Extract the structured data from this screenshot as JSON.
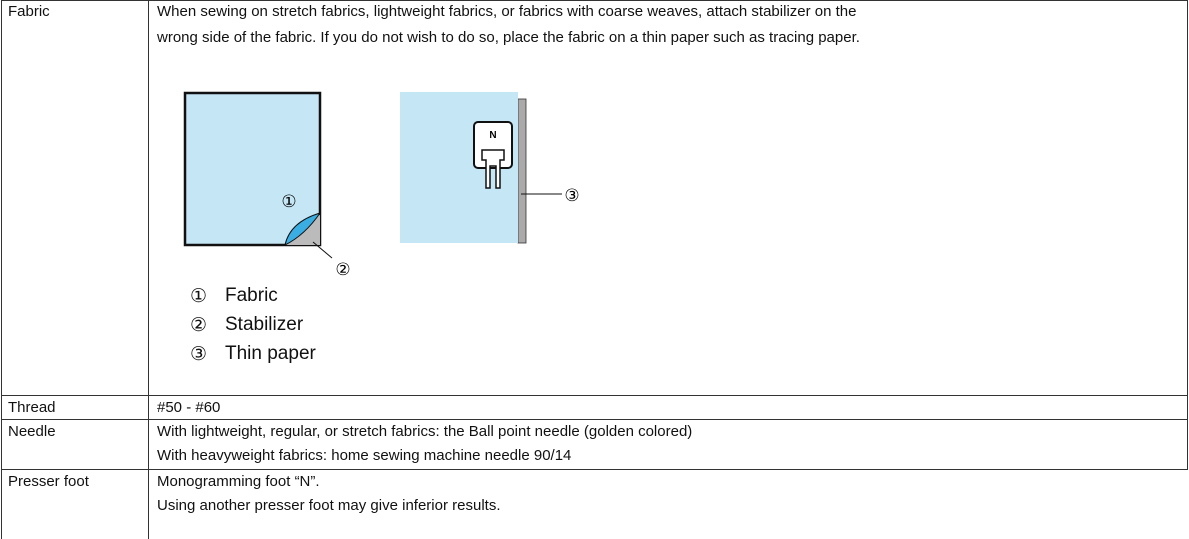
{
  "table": {
    "rows": [
      {
        "label": "Fabric",
        "text": [
          "When sewing on stretch fabrics, lightweight fabrics, or fabrics with coarse weaves, attach stabilizer on the",
          "wrong side of the fabric. If you do not wish to do so, place the fabric on a thin paper such as tracing paper."
        ],
        "figure": {
          "callouts": [
            "①",
            "②",
            "③"
          ],
          "foot_letter": "N"
        },
        "legend": [
          {
            "marker": "①",
            "text": "Fabric"
          },
          {
            "marker": "②",
            "text": "Stabilizer"
          },
          {
            "marker": "③",
            "text": "Thin paper"
          }
        ]
      },
      {
        "label": "Thread",
        "text": [
          "#50 - #60"
        ]
      },
      {
        "label": "Needle",
        "text": [
          "With lightweight, regular, or stretch fabrics: the Ball point needle (golden colored)",
          "With heavyweight fabrics: home sewing machine needle 90/14"
        ]
      },
      {
        "label": "Presser foot",
        "text": [
          "Monogramming foot “N”.",
          "Using another presser foot may give inferior results."
        ]
      }
    ]
  }
}
